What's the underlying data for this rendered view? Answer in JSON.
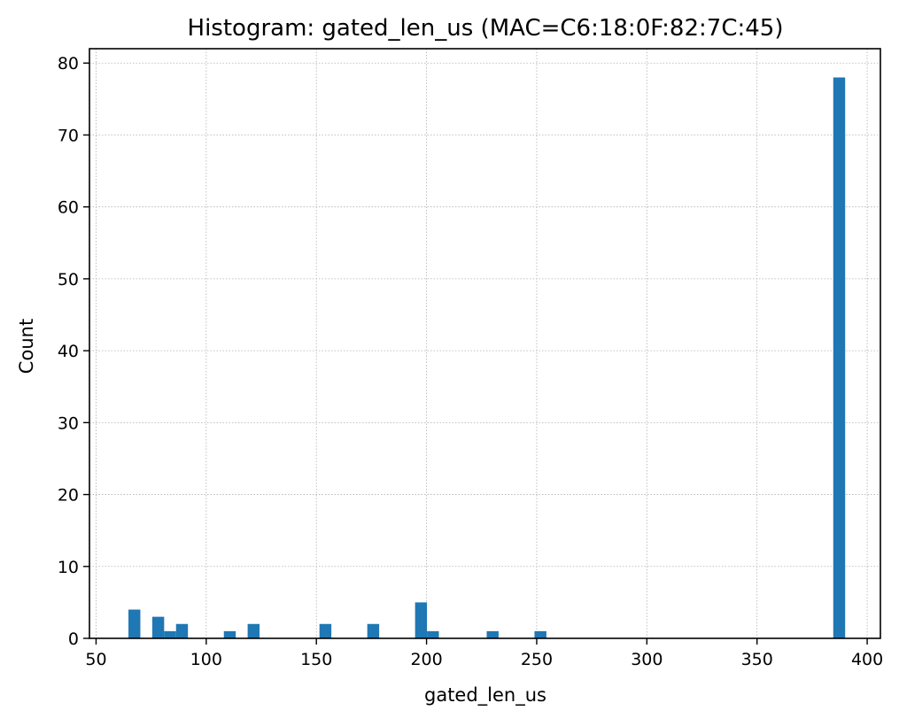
{
  "chart_data": {
    "type": "bar",
    "title": "Histogram: gated_len_us (MAC=C6:18:0F:82:7C:45)",
    "xlabel": "gated_len_us",
    "ylabel": "Count",
    "xlim": [
      47,
      406
    ],
    "ylim": [
      0,
      82
    ],
    "xticks": [
      50,
      100,
      150,
      200,
      250,
      300,
      350,
      400
    ],
    "yticks": [
      0,
      10,
      20,
      30,
      40,
      50,
      60,
      70,
      80
    ],
    "grid": true,
    "bin_width": 5.4,
    "bar_color": "#1f77b4",
    "bins": [
      {
        "x0": 64.7,
        "x1": 70.1,
        "count": 4
      },
      {
        "x0": 75.5,
        "x1": 80.9,
        "count": 3
      },
      {
        "x0": 80.9,
        "x1": 86.3,
        "count": 1
      },
      {
        "x0": 86.3,
        "x1": 91.7,
        "count": 2
      },
      {
        "x0": 108.0,
        "x1": 113.4,
        "count": 1
      },
      {
        "x0": 118.8,
        "x1": 124.2,
        "count": 2
      },
      {
        "x0": 151.4,
        "x1": 156.8,
        "count": 2
      },
      {
        "x0": 173.1,
        "x1": 178.5,
        "count": 2
      },
      {
        "x0": 194.8,
        "x1": 200.2,
        "count": 5
      },
      {
        "x0": 200.2,
        "x1": 205.6,
        "count": 1
      },
      {
        "x0": 227.3,
        "x1": 232.7,
        "count": 1
      },
      {
        "x0": 249.0,
        "x1": 254.4,
        "count": 1
      },
      {
        "x0": 384.6,
        "x1": 390.0,
        "count": 78
      }
    ]
  }
}
